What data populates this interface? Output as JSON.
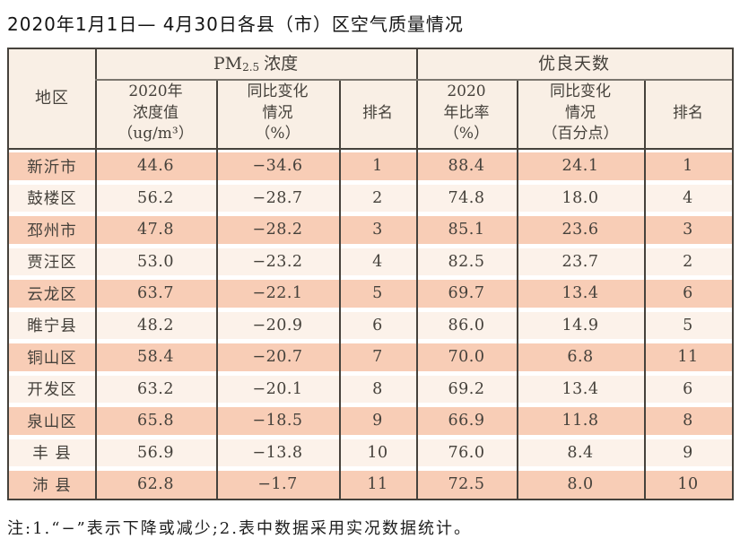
{
  "title": "2020年1月1日— 4月30日各县（市）区空气质量情况",
  "table": {
    "region_header": "地区",
    "group_pm": {
      "prefix": "PM",
      "sub": "2.5",
      "suffix": "浓度"
    },
    "group_days": "优良天数",
    "subheaders": {
      "pm_value": "2020年\n浓度值\n（ug/m³）",
      "pm_change": "同比变化\n情况\n（%）",
      "pm_rank": "排名",
      "days_rate": "2020\n年比率\n（%）",
      "days_change": "同比变化\n情况\n（百分点）",
      "days_rank": "排名"
    },
    "rows": [
      {
        "region": "新沂市",
        "pm_value": "44.6",
        "pm_change": "−34.6",
        "pm_rank": "1",
        "days_rate": "88.4",
        "days_change": "24.1",
        "days_rank": "1"
      },
      {
        "region": "鼓楼区",
        "pm_value": "56.2",
        "pm_change": "−28.7",
        "pm_rank": "2",
        "days_rate": "74.8",
        "days_change": "18.0",
        "days_rank": "4"
      },
      {
        "region": "邳州市",
        "pm_value": "47.8",
        "pm_change": "−28.2",
        "pm_rank": "3",
        "days_rate": "85.1",
        "days_change": "23.6",
        "days_rank": "3"
      },
      {
        "region": "贾汪区",
        "pm_value": "53.0",
        "pm_change": "−23.2",
        "pm_rank": "4",
        "days_rate": "82.5",
        "days_change": "23.7",
        "days_rank": "2"
      },
      {
        "region": "云龙区",
        "pm_value": "63.7",
        "pm_change": "−22.1",
        "pm_rank": "5",
        "days_rate": "69.7",
        "days_change": "13.4",
        "days_rank": "6"
      },
      {
        "region": "睢宁县",
        "pm_value": "48.2",
        "pm_change": "−20.9",
        "pm_rank": "6",
        "days_rate": "86.0",
        "days_change": "14.9",
        "days_rank": "5"
      },
      {
        "region": "铜山区",
        "pm_value": "58.4",
        "pm_change": "−20.7",
        "pm_rank": "7",
        "days_rate": "70.0",
        "days_change": "6.8",
        "days_rank": "11"
      },
      {
        "region": "开发区",
        "pm_value": "63.2",
        "pm_change": "−20.1",
        "pm_rank": "8",
        "days_rate": "69.2",
        "days_change": "13.4",
        "days_rank": "6"
      },
      {
        "region": "泉山区",
        "pm_value": "65.8",
        "pm_change": "−18.5",
        "pm_rank": "9",
        "days_rate": "66.9",
        "days_change": "11.8",
        "days_rank": "8"
      },
      {
        "region": "丰 县",
        "pm_value": "56.9",
        "pm_change": "−13.8",
        "pm_rank": "10",
        "days_rate": "76.0",
        "days_change": "8.4",
        "days_rank": "9"
      },
      {
        "region": "沛 县",
        "pm_value": "62.8",
        "pm_change": "−1.7",
        "pm_rank": "11",
        "days_rate": "72.5",
        "days_change": "8.0",
        "days_rank": "10"
      }
    ]
  },
  "note": "注:1.“−”表示下降或减少;2.表中数据采用实况数据统计。",
  "colors": {
    "row_odd": "#f8cdb6",
    "row_even": "#fcf2ea",
    "header_bg": "#f9efe5",
    "border_dark": "#46423c",
    "group_rule": "#7b766e"
  }
}
